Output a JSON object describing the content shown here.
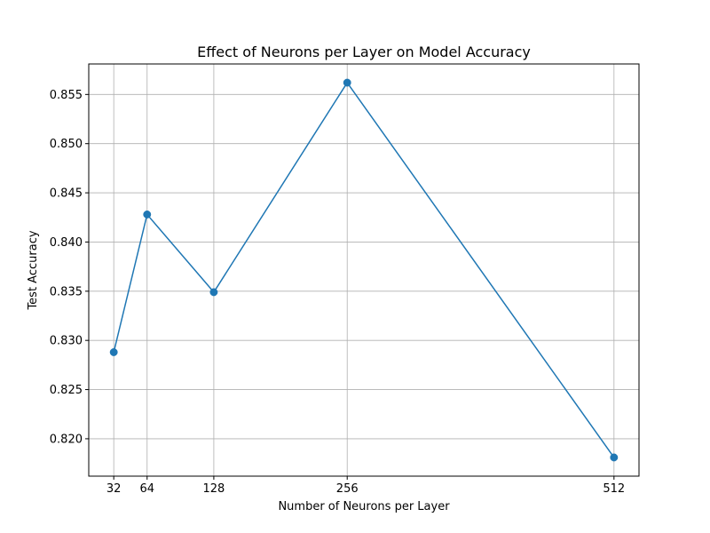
{
  "chart_data": {
    "type": "line",
    "title": "Effect of Neurons per Layer on Model Accuracy",
    "xlabel": "Number of Neurons per Layer",
    "ylabel": "Test Accuracy",
    "x": [
      32,
      64,
      128,
      256,
      512
    ],
    "x_tick_labels": [
      "32",
      "64",
      "128",
      "256",
      "512"
    ],
    "series": [
      {
        "values": [
          0.8288,
          0.8428,
          0.8349,
          0.8562,
          0.8181
        ]
      }
    ],
    "y_ticks": [
      0.82,
      0.825,
      0.83,
      0.835,
      0.84,
      0.845,
      0.85,
      0.855
    ],
    "y_tick_labels": [
      "0.820",
      "0.825",
      "0.830",
      "0.835",
      "0.840",
      "0.845",
      "0.850",
      "0.855"
    ],
    "xlim": [
      8,
      536
    ],
    "ylim": [
      0.8162,
      0.8581
    ],
    "grid": true,
    "marker": "circle",
    "line_color": "#1f77b4"
  }
}
